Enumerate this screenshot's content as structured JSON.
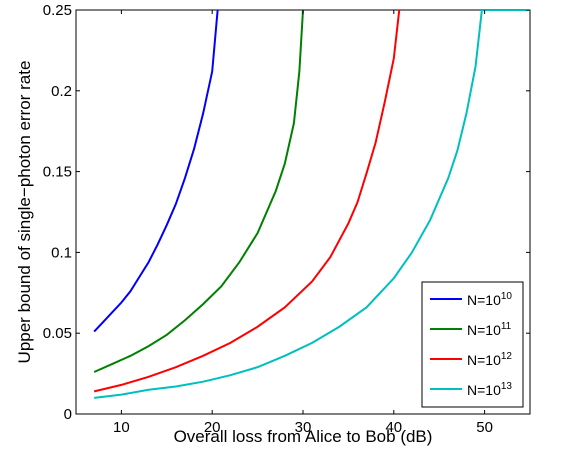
{
  "chart_data": {
    "type": "line",
    "title": "",
    "xlabel": "Overall loss from Alice to Bob (dB)",
    "ylabel": "Upper bound of single−photon error rate",
    "xlim": [
      5,
      55
    ],
    "ylim": [
      0,
      0.25
    ],
    "xticks": [
      10,
      20,
      30,
      40,
      50
    ],
    "xtick_labels": [
      "10",
      "20",
      "30",
      "40",
      "50"
    ],
    "yticks": [
      0,
      0.05,
      0.1,
      0.15,
      0.2,
      0.25
    ],
    "ytick_labels": [
      "0",
      "0.05",
      "0.1",
      "0.15",
      "0.2",
      "0.25"
    ],
    "grid": false,
    "legend_position": "bottom-right",
    "series": [
      {
        "name": "N=10",
        "name_sup": "10",
        "color": "#0000ff",
        "points": [
          [
            7,
            0.051
          ],
          [
            8,
            0.057
          ],
          [
            9,
            0.063
          ],
          [
            10,
            0.069
          ],
          [
            11,
            0.076
          ],
          [
            12,
            0.085
          ],
          [
            13,
            0.094
          ],
          [
            14,
            0.105
          ],
          [
            15,
            0.117
          ],
          [
            16,
            0.13
          ],
          [
            17,
            0.146
          ],
          [
            18,
            0.164
          ],
          [
            19,
            0.186
          ],
          [
            20,
            0.212
          ],
          [
            20.6,
            0.25
          ]
        ]
      },
      {
        "name": "N=10",
        "name_sup": "11",
        "color": "#008000",
        "points": [
          [
            7,
            0.026
          ],
          [
            9,
            0.031
          ],
          [
            11,
            0.036
          ],
          [
            13,
            0.042
          ],
          [
            15,
            0.049
          ],
          [
            17,
            0.058
          ],
          [
            19,
            0.068
          ],
          [
            21,
            0.079
          ],
          [
            23,
            0.094
          ],
          [
            25,
            0.112
          ],
          [
            27,
            0.138
          ],
          [
            28,
            0.155
          ],
          [
            29,
            0.18
          ],
          [
            29.6,
            0.212
          ],
          [
            30,
            0.25
          ]
        ]
      },
      {
        "name": "N=10",
        "name_sup": "12",
        "color": "#ff0000",
        "points": [
          [
            7,
            0.014
          ],
          [
            10,
            0.018
          ],
          [
            13,
            0.023
          ],
          [
            16,
            0.029
          ],
          [
            19,
            0.036
          ],
          [
            22,
            0.044
          ],
          [
            25,
            0.054
          ],
          [
            28,
            0.066
          ],
          [
            31,
            0.082
          ],
          [
            33,
            0.097
          ],
          [
            35,
            0.118
          ],
          [
            36,
            0.131
          ],
          [
            37,
            0.149
          ],
          [
            38,
            0.168
          ],
          [
            39,
            0.193
          ],
          [
            40,
            0.22
          ],
          [
            40.6,
            0.25
          ]
        ]
      },
      {
        "name": "N=10",
        "name_sup": "13",
        "color": "#00bfbf",
        "points": [
          [
            7,
            0.01
          ],
          [
            10,
            0.012
          ],
          [
            13,
            0.015
          ],
          [
            16,
            0.017
          ],
          [
            19,
            0.02
          ],
          [
            22,
            0.024
          ],
          [
            25,
            0.029
          ],
          [
            28,
            0.036
          ],
          [
            31,
            0.044
          ],
          [
            34,
            0.054
          ],
          [
            37,
            0.066
          ],
          [
            40,
            0.084
          ],
          [
            42,
            0.1
          ],
          [
            44,
            0.12
          ],
          [
            46,
            0.146
          ],
          [
            47,
            0.163
          ],
          [
            48,
            0.186
          ],
          [
            49,
            0.215
          ],
          [
            49.7,
            0.25
          ],
          [
            55,
            0.25
          ]
        ]
      }
    ]
  }
}
